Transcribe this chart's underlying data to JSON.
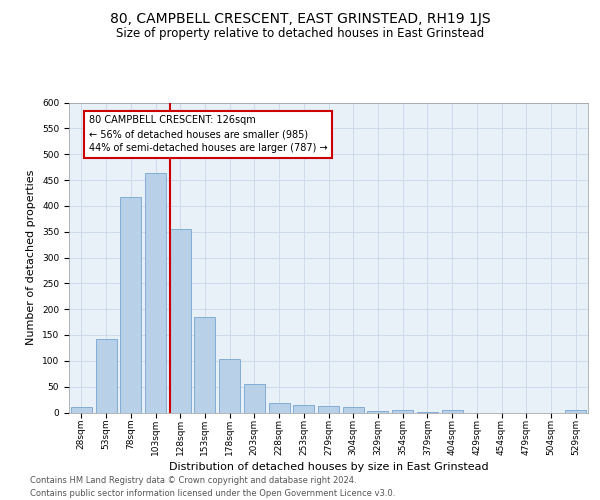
{
  "title": "80, CAMPBELL CRESCENT, EAST GRINSTEAD, RH19 1JS",
  "subtitle": "Size of property relative to detached houses in East Grinstead",
  "xlabel": "Distribution of detached houses by size in East Grinstead",
  "ylabel": "Number of detached properties",
  "footer_line1": "Contains HM Land Registry data © Crown copyright and database right 2024.",
  "footer_line2": "Contains public sector information licensed under the Open Government Licence v3.0.",
  "bar_labels": [
    "28sqm",
    "53sqm",
    "78sqm",
    "103sqm",
    "128sqm",
    "153sqm",
    "178sqm",
    "203sqm",
    "228sqm",
    "253sqm",
    "279sqm",
    "304sqm",
    "329sqm",
    "354sqm",
    "379sqm",
    "404sqm",
    "429sqm",
    "454sqm",
    "479sqm",
    "504sqm",
    "529sqm"
  ],
  "bar_values": [
    10,
    143,
    418,
    463,
    355,
    184,
    104,
    55,
    18,
    14,
    13,
    10,
    3,
    4,
    1,
    5,
    0,
    0,
    0,
    0,
    4
  ],
  "bar_color": "#b8d0e8",
  "bar_edge_color": "#6699cc",
  "property_line_color": "#cc0000",
  "annotation_text": "80 CAMPBELL CRESCENT: 126sqm\n← 56% of detached houses are smaller (985)\n44% of semi-detached houses are larger (787) →",
  "annotation_box_color": "#cc0000",
  "ylim": [
    0,
    600
  ],
  "yticks": [
    0,
    50,
    100,
    150,
    200,
    250,
    300,
    350,
    400,
    450,
    500,
    550,
    600
  ],
  "grid_color": "#c8d8ea",
  "title_fontsize": 10,
  "subtitle_fontsize": 8.5,
  "xlabel_fontsize": 8,
  "ylabel_fontsize": 8,
  "tick_fontsize": 6.5,
  "annotation_fontsize": 7,
  "footer_fontsize": 6
}
